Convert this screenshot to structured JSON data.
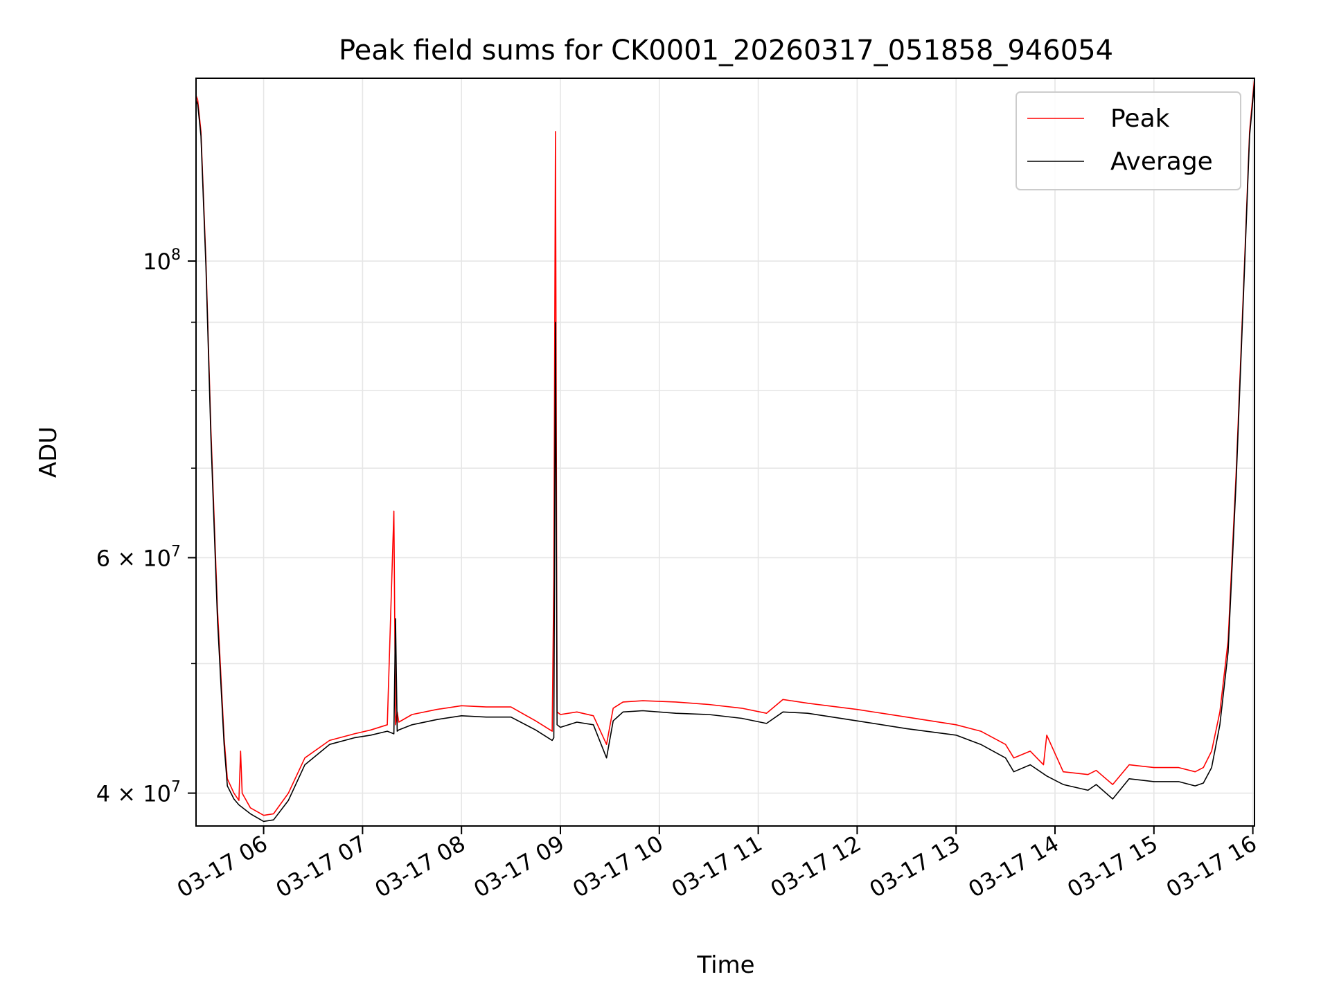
{
  "chart_data": {
    "type": "line",
    "title": "Peak field sums for CK0001_20260317_051858_946054",
    "xlabel": "Time",
    "ylabel": "ADU",
    "x_scale": "time",
    "y_scale": "log",
    "xlim": [
      "2026-03-17 05:19",
      "2026-03-17 16:01"
    ],
    "ylim": [
      37800000,
      137000000
    ],
    "grid": true,
    "legend_position": "upper right",
    "x_ticks": [
      "2026-03-17 06:00",
      "2026-03-17 07:00",
      "2026-03-17 08:00",
      "2026-03-17 09:00",
      "2026-03-17 10:00",
      "2026-03-17 11:00",
      "2026-03-17 12:00",
      "2026-03-17 13:00",
      "2026-03-17 14:00",
      "2026-03-17 15:00",
      "2026-03-17 16:00"
    ],
    "x_tick_labels": [
      "03-17 06",
      "03-17 07",
      "03-17 08",
      "03-17 09",
      "03-17 10",
      "03-17 11",
      "03-17 12",
      "03-17 13",
      "03-17 14",
      "03-17 15",
      "03-17 16"
    ],
    "y_major_ticks": [
      {
        "value": 40000000,
        "mantissa": "4",
        "exponent": "7"
      },
      {
        "value": 60000000,
        "mantissa": "6",
        "exponent": "7"
      },
      {
        "value": 100000000,
        "mantissa": "",
        "exponent": "8"
      }
    ],
    "y_minor_ticks": [
      50000000,
      70000000,
      80000000,
      90000000
    ],
    "series": [
      {
        "name": "Peak",
        "color": "#ff0000",
        "x": [
          "2026-03-17 05:19",
          "2026-03-17 05:20",
          "2026-03-17 05:22",
          "2026-03-17 05:25",
          "2026-03-17 05:28",
          "2026-03-17 05:32",
          "2026-03-17 05:36",
          "2026-03-17 05:38",
          "2026-03-17 05:42",
          "2026-03-17 05:45",
          "2026-03-17 05:46",
          "2026-03-17 05:47",
          "2026-03-17 05:52",
          "2026-03-17 06:00",
          "2026-03-17 06:06",
          "2026-03-17 06:15",
          "2026-03-17 06:25",
          "2026-03-17 06:40",
          "2026-03-17 06:55",
          "2026-03-17 07:05",
          "2026-03-17 07:15",
          "2026-03-17 07:19",
          "2026-03-17 07:20",
          "2026-03-17 07:21",
          "2026-03-17 07:22",
          "2026-03-17 07:30",
          "2026-03-17 07:45",
          "2026-03-17 08:00",
          "2026-03-17 08:15",
          "2026-03-17 08:30",
          "2026-03-17 08:45",
          "2026-03-17 08:55",
          "2026-03-17 08:56",
          "2026-03-17 08:57",
          "2026-03-17 08:58",
          "2026-03-17 09:00",
          "2026-03-17 09:10",
          "2026-03-17 09:20",
          "2026-03-17 09:28",
          "2026-03-17 09:32",
          "2026-03-17 09:38",
          "2026-03-17 09:50",
          "2026-03-17 10:10",
          "2026-03-17 10:30",
          "2026-03-17 10:50",
          "2026-03-17 11:05",
          "2026-03-17 11:15",
          "2026-03-17 11:30",
          "2026-03-17 12:00",
          "2026-03-17 12:30",
          "2026-03-17 13:00",
          "2026-03-17 13:15",
          "2026-03-17 13:30",
          "2026-03-17 13:35",
          "2026-03-17 13:45",
          "2026-03-17 13:53",
          "2026-03-17 13:55",
          "2026-03-17 14:05",
          "2026-03-17 14:20",
          "2026-03-17 14:25",
          "2026-03-17 14:35",
          "2026-03-17 14:45",
          "2026-03-17 15:00",
          "2026-03-17 15:15",
          "2026-03-17 15:25",
          "2026-03-17 15:30",
          "2026-03-17 15:35",
          "2026-03-17 15:40",
          "2026-03-17 15:45",
          "2026-03-17 15:50",
          "2026-03-17 15:55",
          "2026-03-17 15:58",
          "2026-03-17 16:01"
        ],
        "y": [
          133000000,
          132000000,
          125000000,
          100000000,
          75000000,
          55000000,
          44000000,
          41000000,
          40000000,
          39500000,
          43000000,
          40000000,
          39000000,
          38500000,
          38600000,
          40000000,
          42500000,
          43800000,
          44300000,
          44600000,
          45000000,
          65000000,
          45000000,
          46000000,
          45200000,
          45800000,
          46200000,
          46500000,
          46400000,
          46400000,
          45300000,
          44500000,
          58000000,
          125000000,
          46000000,
          45800000,
          46000000,
          45700000,
          43500000,
          46300000,
          46800000,
          46900000,
          46800000,
          46600000,
          46300000,
          45900000,
          47000000,
          46700000,
          46200000,
          45600000,
          45000000,
          44500000,
          43500000,
          42500000,
          43000000,
          42000000,
          44200000,
          41500000,
          41300000,
          41600000,
          40600000,
          42000000,
          41800000,
          41800000,
          41500000,
          41800000,
          43000000,
          46000000,
          52000000,
          70000000,
          100000000,
          125000000,
          137000000
        ]
      },
      {
        "name": "Average",
        "color": "#000000",
        "x": [
          "2026-03-17 05:19",
          "2026-03-17 05:20",
          "2026-03-17 05:22",
          "2026-03-17 05:25",
          "2026-03-17 05:28",
          "2026-03-17 05:32",
          "2026-03-17 05:36",
          "2026-03-17 05:38",
          "2026-03-17 05:42",
          "2026-03-17 05:45",
          "2026-03-17 05:52",
          "2026-03-17 06:00",
          "2026-03-17 06:06",
          "2026-03-17 06:15",
          "2026-03-17 06:25",
          "2026-03-17 06:40",
          "2026-03-17 06:55",
          "2026-03-17 07:05",
          "2026-03-17 07:15",
          "2026-03-17 07:19",
          "2026-03-17 07:20",
          "2026-03-17 07:21",
          "2026-03-17 07:22",
          "2026-03-17 07:30",
          "2026-03-17 07:45",
          "2026-03-17 08:00",
          "2026-03-17 08:15",
          "2026-03-17 08:30",
          "2026-03-17 08:45",
          "2026-03-17 08:55",
          "2026-03-17 08:56",
          "2026-03-17 08:57",
          "2026-03-17 08:58",
          "2026-03-17 09:00",
          "2026-03-17 09:10",
          "2026-03-17 09:20",
          "2026-03-17 09:28",
          "2026-03-17 09:32",
          "2026-03-17 09:38",
          "2026-03-17 09:50",
          "2026-03-17 10:10",
          "2026-03-17 10:30",
          "2026-03-17 10:50",
          "2026-03-17 11:05",
          "2026-03-17 11:15",
          "2026-03-17 11:30",
          "2026-03-17 12:00",
          "2026-03-17 12:30",
          "2026-03-17 13:00",
          "2026-03-17 13:15",
          "2026-03-17 13:30",
          "2026-03-17 13:35",
          "2026-03-17 13:45",
          "2026-03-17 13:55",
          "2026-03-17 14:05",
          "2026-03-17 14:20",
          "2026-03-17 14:25",
          "2026-03-17 14:35",
          "2026-03-17 14:45",
          "2026-03-17 15:00",
          "2026-03-17 15:15",
          "2026-03-17 15:25",
          "2026-03-17 15:30",
          "2026-03-17 15:35",
          "2026-03-17 15:40",
          "2026-03-17 15:45",
          "2026-03-17 15:50",
          "2026-03-17 15:55",
          "2026-03-17 15:58",
          "2026-03-17 16:01"
        ],
        "y": [
          132000000,
          131000000,
          124000000,
          99000000,
          74000000,
          54000000,
          43500000,
          40500000,
          39600000,
          39200000,
          38600000,
          38100000,
          38200000,
          39500000,
          42000000,
          43500000,
          44000000,
          44200000,
          44500000,
          44300000,
          54000000,
          44500000,
          44600000,
          45000000,
          45400000,
          45700000,
          45600000,
          45600000,
          44600000,
          43800000,
          44000000,
          90000000,
          45000000,
          44800000,
          45200000,
          45000000,
          42500000,
          45300000,
          46000000,
          46100000,
          45900000,
          45800000,
          45500000,
          45100000,
          46000000,
          45900000,
          45300000,
          44700000,
          44200000,
          43500000,
          42500000,
          41500000,
          42000000,
          41200000,
          40600000,
          40200000,
          40600000,
          39600000,
          41000000,
          40800000,
          40800000,
          40500000,
          40700000,
          41800000,
          45000000,
          51000000,
          69000000,
          99000000,
          124000000,
          136000000
        ]
      }
    ]
  }
}
